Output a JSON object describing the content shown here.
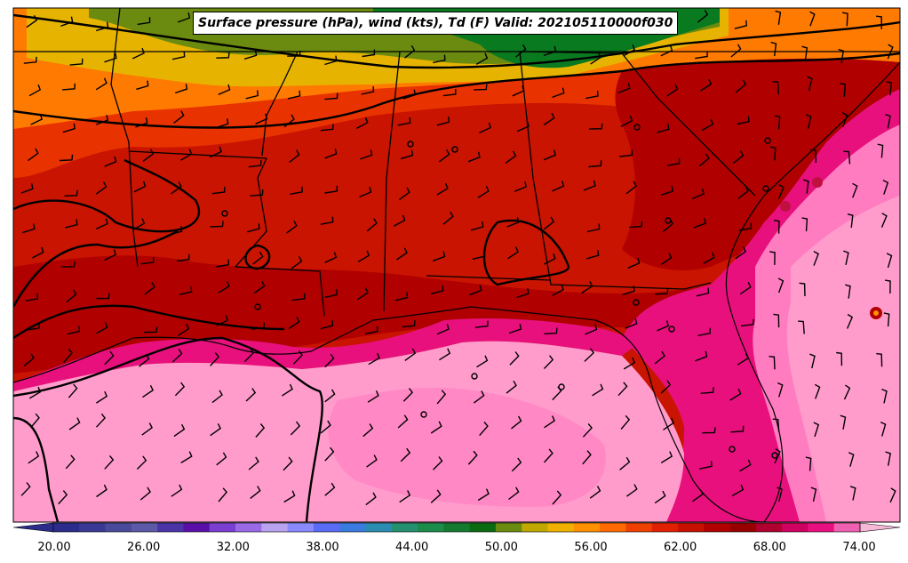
{
  "title": "Surface pressure (hPa), wind (kts), Td (F) Valid: 202105110000f030",
  "colorbar": {
    "tick_labels": [
      "20.00",
      "26.00",
      "32.00",
      "38.00",
      "44.00",
      "50.00",
      "56.00",
      "62.00",
      "68.00",
      "74.00"
    ],
    "colors": [
      "#2c2c8c",
      "#3a3a96",
      "#4a4a9c",
      "#5c5aa6",
      "#4b33a8",
      "#5a10a8",
      "#7a3fd0",
      "#9a6ae6",
      "#b9a2f0",
      "#8a8aff",
      "#5a6cf5",
      "#3a7be0",
      "#2a8cb0",
      "#249070",
      "#1c8c4a",
      "#147a30",
      "#0a6a10",
      "#6a8a10",
      "#c0a800",
      "#f0b000",
      "#ff9000",
      "#ff6a00",
      "#f04000",
      "#e02000",
      "#c81000",
      "#b00000",
      "#980000",
      "#b00030",
      "#d00060",
      "#e81080",
      "#f060b0"
    ],
    "range": [
      18,
      77
    ]
  },
  "colors": {
    "gulf": "#ff9ccc",
    "gulf_inner": "#ff7cc0",
    "coast_magenta": "#e8107c",
    "deep_red": "#b00000",
    "red": "#c81400",
    "orange_red": "#e83200",
    "orange": "#ff7a00",
    "gold": "#e6b400",
    "green": "#6a8a10",
    "dark_green": "#0a7a20",
    "borders": "#000000"
  }
}
